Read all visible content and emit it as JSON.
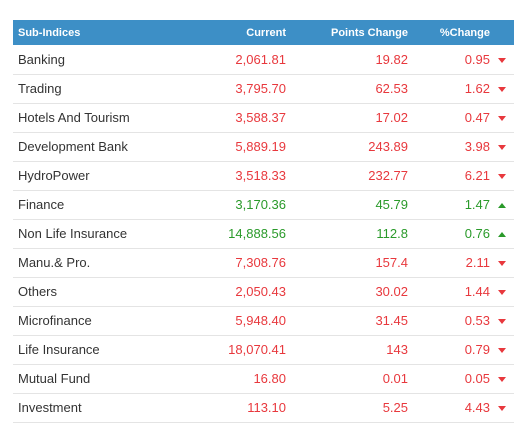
{
  "header": {
    "name": "Sub-Indices",
    "current": "Current",
    "points_change": "Points Change",
    "pct_change": "%Change"
  },
  "colors": {
    "header_bg": "#3d8fc6",
    "down": "#e8383d",
    "up": "#2a9a2a"
  },
  "rows": [
    {
      "name": "Banking",
      "current": "2,061.81",
      "points": "19.82",
      "pct": "0.95",
      "dir": "down",
      "icon": "triangle-down-icon"
    },
    {
      "name": "Trading",
      "current": "3,795.70",
      "points": "62.53",
      "pct": "1.62",
      "dir": "down",
      "icon": "triangle-down-icon"
    },
    {
      "name": "Hotels And Tourism",
      "current": "3,588.37",
      "points": "17.02",
      "pct": "0.47",
      "dir": "down",
      "icon": "triangle-down-icon"
    },
    {
      "name": "Development Bank",
      "current": "5,889.19",
      "points": "243.89",
      "pct": "3.98",
      "dir": "down",
      "icon": "triangle-down-icon"
    },
    {
      "name": "HydroPower",
      "current": "3,518.33",
      "points": "232.77",
      "pct": "6.21",
      "dir": "down",
      "icon": "triangle-down-icon"
    },
    {
      "name": "Finance",
      "current": "3,170.36",
      "points": "45.79",
      "pct": "1.47",
      "dir": "up",
      "icon": "triangle-up-icon"
    },
    {
      "name": "Non Life Insurance",
      "current": "14,888.56",
      "points": "112.8",
      "pct": "0.76",
      "dir": "up",
      "icon": "triangle-up-icon"
    },
    {
      "name": "Manu.& Pro.",
      "current": "7,308.76",
      "points": "157.4",
      "pct": "2.11",
      "dir": "down",
      "icon": "triangle-down-icon"
    },
    {
      "name": "Others",
      "current": "2,050.43",
      "points": "30.02",
      "pct": "1.44",
      "dir": "down",
      "icon": "triangle-down-icon"
    },
    {
      "name": "Microfinance",
      "current": "5,948.40",
      "points": "31.45",
      "pct": "0.53",
      "dir": "down",
      "icon": "triangle-down-icon"
    },
    {
      "name": "Life Insurance",
      "current": "18,070.41",
      "points": "143",
      "pct": "0.79",
      "dir": "down",
      "icon": "triangle-down-icon"
    },
    {
      "name": "Mutual Fund",
      "current": "16.80",
      "points": "0.01",
      "pct": "0.05",
      "dir": "down",
      "icon": "triangle-down-icon"
    },
    {
      "name": "Investment",
      "current": "113.10",
      "points": "5.25",
      "pct": "4.43",
      "dir": "down",
      "icon": "triangle-down-icon"
    }
  ]
}
